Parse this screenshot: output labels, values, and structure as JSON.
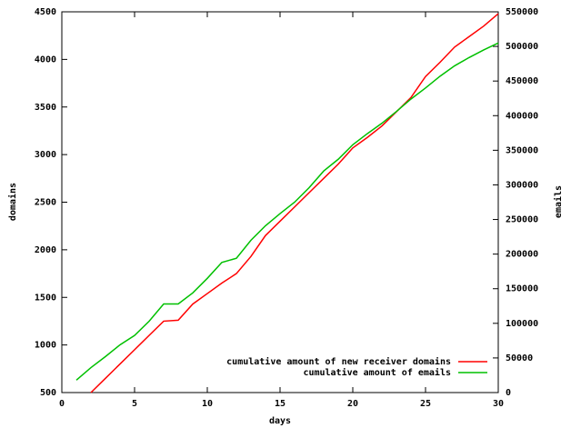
{
  "chart_data": {
    "type": "line",
    "x_label": "days",
    "y_label": "domains",
    "y2_label": "emails",
    "x": [
      1,
      2,
      3,
      4,
      5,
      6,
      7,
      8,
      9,
      10,
      11,
      12,
      13,
      14,
      15,
      16,
      17,
      18,
      19,
      20,
      21,
      22,
      23,
      24,
      25,
      26,
      27,
      28,
      29,
      30
    ],
    "series": [
      {
        "name": "cumulative amount of new receiver domains",
        "color": "#ff0000",
        "values": [
          null,
          500,
          650,
          800,
          950,
          1100,
          1250,
          1260,
          1430,
          1540,
          1650,
          1750,
          1930,
          2150,
          2300,
          2450,
          2600,
          2750,
          2900,
          3070,
          3180,
          3300,
          3450,
          3600,
          3820,
          3970,
          4130,
          4240,
          4350,
          4480
        ]
      },
      {
        "name": "cumulative amount of emails",
        "color": "#00c000",
        "axis": "y2",
        "values": [
          18000,
          36000,
          52000,
          69000,
          82500,
          103000,
          128000,
          128000,
          144000,
          165000,
          188000,
          194000,
          220000,
          241000,
          258500,
          275000,
          296000,
          320000,
          337000,
          358000,
          374000,
          389000,
          406000,
          424000,
          440000,
          457000,
          472000,
          484000,
          495000,
          505000
        ]
      }
    ],
    "xlim": [
      0,
      30
    ],
    "xticks": [
      0,
      5,
      10,
      15,
      20,
      25,
      30
    ],
    "ylim": [
      500,
      4500
    ],
    "yticks": [
      500,
      1000,
      1500,
      2000,
      2500,
      3000,
      3500,
      4000,
      4500
    ],
    "y2lim": [
      0,
      550000
    ],
    "y2ticks": [
      0,
      50000,
      100000,
      150000,
      200000,
      250000,
      300000,
      350000,
      400000,
      450000,
      500000,
      550000
    ],
    "legend": "bottom-right"
  }
}
